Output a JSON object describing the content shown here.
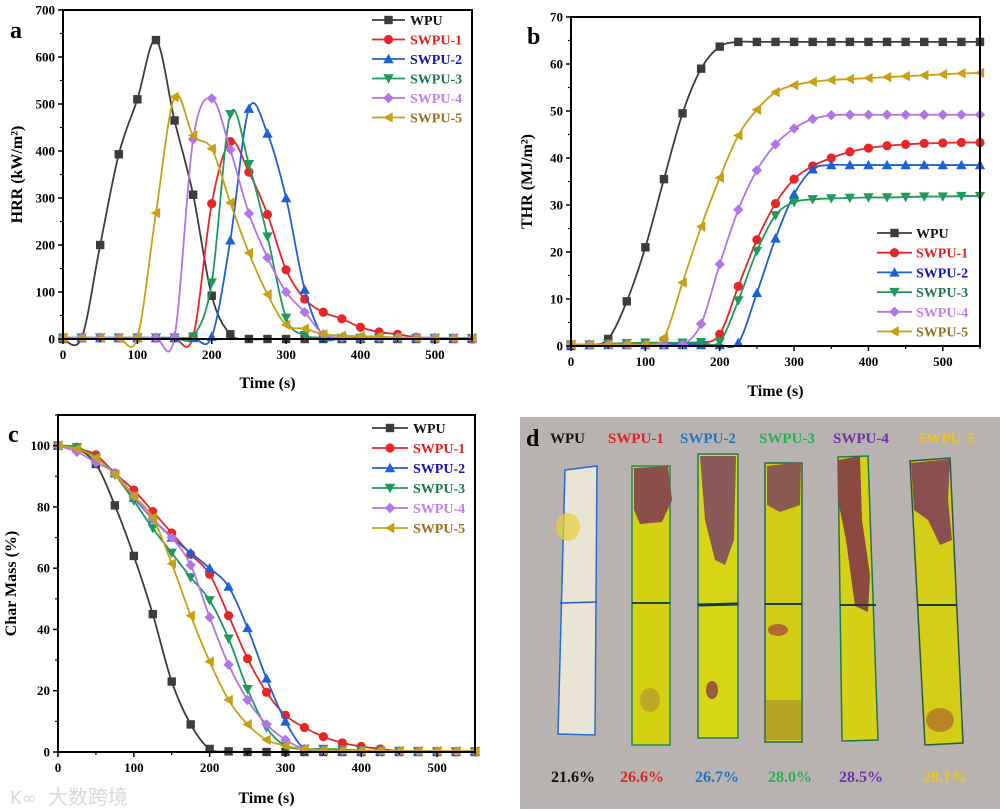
{
  "series_styles": [
    {
      "name": "WPU",
      "color": "#3c3c3c",
      "legend_color": "#111111",
      "marker": "square"
    },
    {
      "name": "SWPU-1",
      "color": "#e8262a",
      "legend_color": "#e0201f",
      "marker": "circle"
    },
    {
      "name": "SWPU-2",
      "color": "#1c62d4",
      "legend_color": "#1414b8",
      "marker": "triangle-up"
    },
    {
      "name": "SWPU-3",
      "color": "#1f9a5c",
      "legend_color": "#1e7a4e",
      "marker": "triangle-down"
    },
    {
      "name": "SWPU-4",
      "color": "#b274e6",
      "legend_color": "#c080f0",
      "marker": "diamond"
    },
    {
      "name": "SWPU-5",
      "color": "#c9a012",
      "legend_color": "#9a7020",
      "marker": "triangle-left"
    }
  ],
  "chart_data": [
    {
      "panel": "a",
      "type": "line",
      "xlabel": "Time (s)",
      "ylabel": "HRR (kW/m²)",
      "xlim": [
        0,
        550
      ],
      "ylim": [
        0,
        700
      ],
      "xticks": [
        0,
        100,
        200,
        300,
        400,
        500
      ],
      "yticks": [
        0,
        100,
        200,
        300,
        400,
        500,
        600,
        700
      ],
      "legend_position": "top-right",
      "grid": false,
      "x": [
        0,
        25,
        50,
        75,
        100,
        125,
        150,
        175,
        200,
        225,
        250,
        275,
        300,
        325,
        350,
        375,
        400,
        425,
        450,
        475,
        500,
        525,
        550
      ],
      "series": [
        {
          "name": "WPU",
          "values": [
            0,
            2,
            200,
            393,
            510,
            636,
            465,
            307,
            92,
            10,
            0,
            0,
            0,
            0,
            0,
            0,
            0,
            0,
            0,
            0,
            0,
            0,
            0
          ]
        },
        {
          "name": "SWPU-1",
          "values": [
            2,
            2,
            2,
            2,
            2,
            2,
            2,
            5,
            288,
            420,
            355,
            265,
            147,
            85,
            57,
            43,
            25,
            15,
            10,
            4,
            2,
            1,
            0
          ]
        },
        {
          "name": "SWPU-2",
          "values": [
            2,
            2,
            2,
            2,
            2,
            2,
            2,
            2,
            5,
            210,
            490,
            437,
            300,
            105,
            5,
            3,
            2,
            2,
            2,
            2,
            2,
            2,
            2
          ]
        },
        {
          "name": "SWPU-3",
          "values": [
            3,
            3,
            3,
            3,
            3,
            3,
            3,
            5,
            120,
            478,
            372,
            218,
            45,
            8,
            3,
            2,
            2,
            2,
            2,
            2,
            2,
            2,
            2
          ]
        },
        {
          "name": "SWPU-4",
          "values": [
            3,
            3,
            3,
            3,
            3,
            3,
            5,
            425,
            512,
            403,
            267,
            173,
            100,
            57,
            10,
            3,
            3,
            3,
            3,
            3,
            3,
            2,
            2
          ]
        },
        {
          "name": "SWPU-5",
          "values": [
            2,
            2,
            2,
            2,
            3,
            268,
            515,
            433,
            405,
            290,
            183,
            95,
            30,
            22,
            10,
            7,
            6,
            5,
            3,
            2,
            2,
            2,
            2
          ]
        }
      ]
    },
    {
      "panel": "b",
      "type": "line",
      "xlabel": "Time (s)",
      "ylabel": "THR (MJ/m²)",
      "xlim": [
        0,
        550
      ],
      "ylim": [
        0,
        70
      ],
      "xticks": [
        0,
        100,
        200,
        300,
        400,
        500
      ],
      "yticks": [
        0,
        10,
        20,
        30,
        40,
        50,
        60,
        70
      ],
      "legend_position": "bottom-right",
      "grid": false,
      "x": [
        0,
        25,
        50,
        75,
        100,
        125,
        150,
        175,
        200,
        225,
        250,
        275,
        300,
        325,
        350,
        375,
        400,
        425,
        450,
        475,
        500,
        525,
        550
      ],
      "series": [
        {
          "name": "WPU",
          "values": [
            0,
            0.2,
            1.5,
            9.5,
            21,
            35.5,
            49.5,
            59,
            63.7,
            64.7,
            64.7,
            64.7,
            64.7,
            64.7,
            64.7,
            64.7,
            64.7,
            64.7,
            64.7,
            64.7,
            64.7,
            64.7,
            64.7
          ]
        },
        {
          "name": "SWPU-1",
          "values": [
            0.3,
            0.3,
            0.4,
            0.5,
            0.6,
            0.6,
            0.6,
            0.7,
            2.5,
            12.7,
            22.6,
            30.3,
            35.5,
            38.3,
            40,
            41.3,
            42.1,
            42.6,
            42.9,
            43.1,
            43.2,
            43.3,
            43.3
          ]
        },
        {
          "name": "SWPU-2",
          "values": [
            0.2,
            0.2,
            0.2,
            0.2,
            0.2,
            0.2,
            0.2,
            0.2,
            0.2,
            0.7,
            11.3,
            22.9,
            32.3,
            37.6,
            38.5,
            38.5,
            38.5,
            38.5,
            38.5,
            38.5,
            38.5,
            38.5,
            38.5
          ]
        },
        {
          "name": "SWPU-3",
          "values": [
            0.3,
            0.3,
            0.5,
            0.6,
            0.7,
            0.7,
            0.7,
            0.8,
            0.9,
            9.7,
            20.2,
            27.8,
            30.6,
            31.2,
            31.4,
            31.5,
            31.6,
            31.6,
            31.7,
            31.8,
            31.8,
            31.9,
            31.9
          ]
        },
        {
          "name": "SWPU-4",
          "values": [
            0.3,
            0.3,
            0.3,
            0.3,
            0.3,
            0.3,
            0.3,
            4.7,
            17.4,
            29,
            37.4,
            42.9,
            46.3,
            48.3,
            49.1,
            49.2,
            49.2,
            49.2,
            49.2,
            49.2,
            49.2,
            49.2,
            49.2
          ]
        },
        {
          "name": "SWPU-5",
          "values": [
            0.3,
            0.3,
            0.3,
            0.3,
            0.3,
            1.8,
            13.5,
            25.4,
            35.8,
            44.8,
            50.3,
            54,
            55.5,
            56.2,
            56.6,
            56.8,
            57,
            57.2,
            57.4,
            57.6,
            57.8,
            58,
            58.1
          ]
        }
      ]
    },
    {
      "panel": "c",
      "type": "line",
      "xlabel": "Time (s)",
      "ylabel": "Char Mass (%)",
      "xlim": [
        0,
        550
      ],
      "ylim": [
        0,
        110
      ],
      "xticks": [
        0,
        100,
        200,
        300,
        400,
        500
      ],
      "yticks": [
        0,
        20,
        40,
        60,
        80,
        100
      ],
      "legend_position": "top-right",
      "grid": false,
      "x": [
        0,
        25,
        50,
        75,
        100,
        125,
        150,
        175,
        200,
        225,
        250,
        275,
        300,
        325,
        350,
        375,
        400,
        425,
        450,
        475,
        500,
        525,
        550
      ],
      "series": [
        {
          "name": "WPU",
          "values": [
            100,
            99,
            94,
            80.5,
            64,
            45,
            23,
            9,
            1,
            0.2,
            0,
            0,
            0,
            0,
            0,
            0,
            0,
            0,
            0,
            0,
            0,
            0,
            0
          ]
        },
        {
          "name": "SWPU-1",
          "values": [
            100,
            99,
            97,
            91,
            85.5,
            78.5,
            71.5,
            64.5,
            58,
            44.5,
            30.5,
            19.5,
            12,
            8,
            5,
            3,
            1.8,
            1,
            0.3,
            0.2,
            0,
            0,
            0
          ]
        },
        {
          "name": "SWPU-2",
          "values": [
            100,
            99.5,
            96,
            91,
            83,
            76,
            70,
            65,
            60,
            54,
            40.5,
            24,
            10,
            1,
            0.5,
            0.3,
            0.3,
            0.3,
            0.3,
            0.2,
            0.2,
            0.2,
            0.2
          ]
        },
        {
          "name": "SWPU-3",
          "values": [
            100,
            99.5,
            96,
            90.5,
            82,
            73,
            65,
            57,
            49.5,
            37,
            20.5,
            8,
            2,
            1,
            1,
            0.8,
            0.5,
            0.4,
            0.3,
            0.3,
            0.2,
            0.2,
            0.2
          ]
        },
        {
          "name": "SWPU-4",
          "values": [
            100,
            98,
            94.5,
            91,
            83.5,
            76,
            70,
            61,
            44,
            28.5,
            17,
            9,
            4,
            1,
            0.5,
            0.4,
            0.3,
            0.3,
            0.2,
            0.2,
            0.2,
            0.2,
            0.2
          ]
        },
        {
          "name": "SWPU-5",
          "values": [
            100,
            99,
            96,
            90.5,
            83.5,
            76.5,
            61.5,
            44.5,
            29.5,
            17,
            9,
            4,
            2,
            1,
            0.5,
            0.5,
            0.4,
            0.4,
            0.3,
            0.3,
            0.3,
            0.3,
            0.3
          ]
        }
      ]
    }
  ],
  "photo_panel": {
    "label": "d",
    "samples": [
      {
        "name": "WPU",
        "value": "21.6%",
        "color": "#111111"
      },
      {
        "name": "SWPU-1",
        "value": "26.6%",
        "color": "#e02222"
      },
      {
        "name": "SWPU-2",
        "value": "26.7%",
        "color": "#2272c4"
      },
      {
        "name": "SWPU-3",
        "value": "28.0%",
        "color": "#22b052"
      },
      {
        "name": "SWPU-4",
        "value": "28.5%",
        "color": "#7030a8"
      },
      {
        "name": "SWPU-5",
        "value": "28.1%",
        "color": "#f2c224"
      }
    ]
  },
  "watermark": "大数跨境"
}
